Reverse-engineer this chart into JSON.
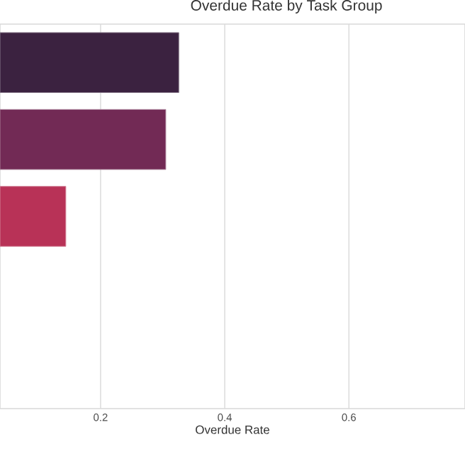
{
  "chart_data": {
    "type": "bar",
    "orientation": "horizontal",
    "title": "Overdue Rate by Task Group",
    "xlabel": "Overdue Rate",
    "categories": [
      null,
      null,
      null,
      null,
      null
    ],
    "values": [
      0.326,
      0.305,
      0.144,
      null,
      null
    ],
    "colors": [
      "#3b2240",
      "#722a55",
      "#b83257",
      "#e05a4f",
      "#f09a74"
    ],
    "xlim": [
      0.038,
      0.787
    ],
    "xticks": [
      0.2,
      0.4,
      0.6
    ],
    "grid": "x",
    "tick_labels": "x"
  }
}
